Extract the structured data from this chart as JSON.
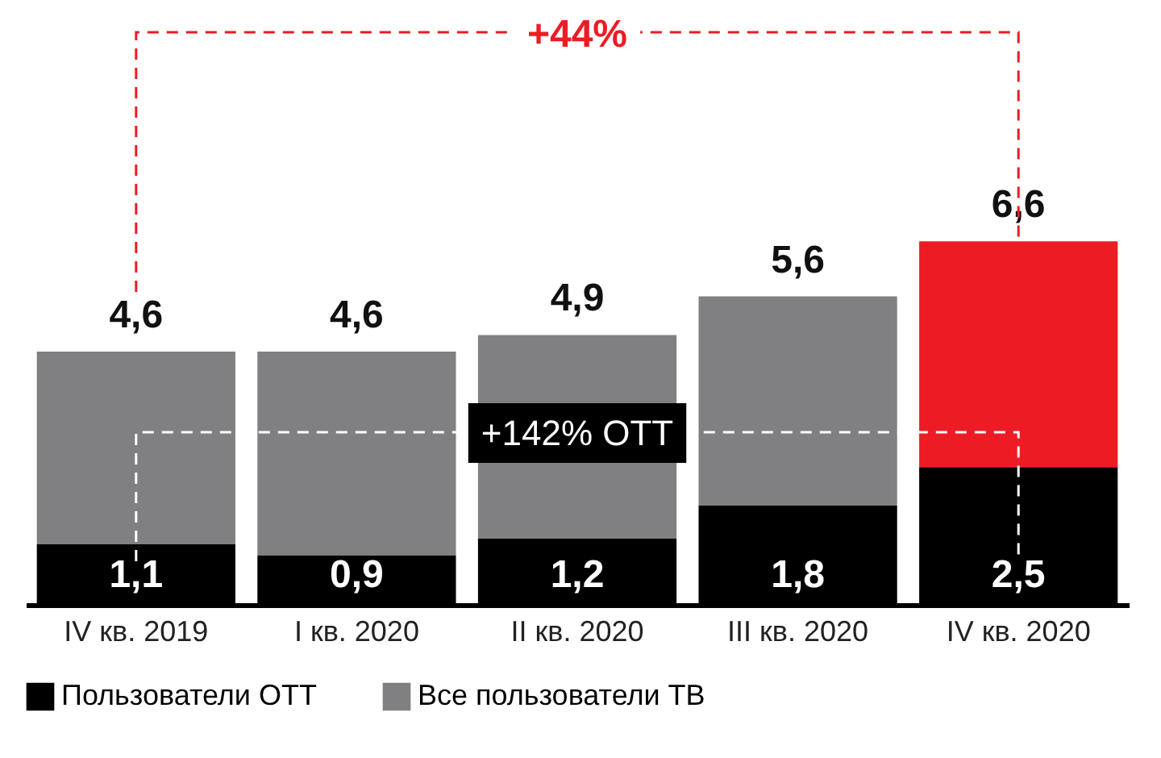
{
  "chart_data": {
    "type": "bar",
    "stacked": true,
    "categories": [
      "IV кв. 2019",
      "I кв. 2020",
      "II кв. 2020",
      "III кв. 2020",
      "IV кв. 2020"
    ],
    "series": [
      {
        "name": "Пользователи OTT",
        "color": "#000000",
        "values": [
          1.1,
          0.9,
          1.2,
          1.8,
          2.5
        ],
        "value_labels": [
          "1,1",
          "0,9",
          "1,2",
          "1,8",
          "2,5"
        ]
      },
      {
        "name": "Все пользователи ТВ",
        "color": "#808083",
        "colors": [
          "#808083",
          "#808083",
          "#808083",
          "#808083",
          "#ed1c24"
        ],
        "values": [
          3.5,
          3.7,
          3.7,
          3.8,
          4.1
        ]
      }
    ],
    "totals": [
      "4,6",
      "4,6",
      "4,9",
      "5,6",
      "6,6"
    ],
    "legend": "bottom left",
    "annotations": [
      "+44%",
      "+142% OTT"
    ]
  }
}
